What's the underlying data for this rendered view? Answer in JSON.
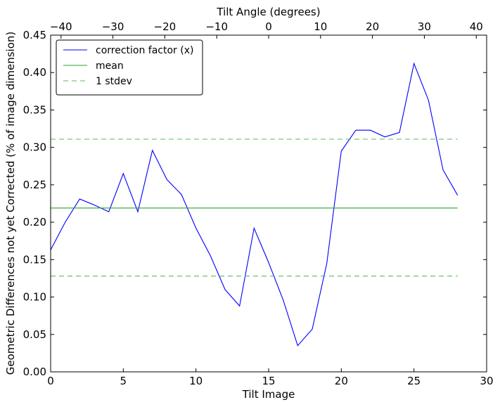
{
  "chart_data": {
    "type": "line",
    "xlabel": "Tilt Image",
    "ylabel": "Geometric Differences not yet Corrected (% of image dimension)",
    "x2label": "Tilt Angle (degrees)",
    "xlim": [
      0,
      30
    ],
    "ylim": [
      0,
      0.45
    ],
    "x2lim": [
      -42,
      42
    ],
    "xticks": [
      0,
      5,
      10,
      15,
      20,
      25,
      30
    ],
    "xtick_labels": [
      "0",
      "5",
      "10",
      "15",
      "20",
      "25",
      "30"
    ],
    "yticks": [
      0,
      0.05,
      0.1,
      0.15,
      0.2,
      0.25,
      0.3,
      0.35,
      0.4,
      0.45
    ],
    "ytick_labels": [
      "0.00",
      "0.05",
      "0.10",
      "0.15",
      "0.20",
      "0.25",
      "0.30",
      "0.35",
      "0.40",
      "0.45"
    ],
    "x2ticks": [
      -40,
      -30,
      -20,
      -10,
      0,
      10,
      20,
      30,
      40
    ],
    "x2tick_labels": [
      "−40",
      "−30",
      "−20",
      "−10",
      "0",
      "10",
      "20",
      "30",
      "40"
    ],
    "grid": false,
    "legend_position": "top-left",
    "series": [
      {
        "name": "correction factor (x)",
        "style": "solid",
        "color": "#0000ff",
        "x": [
          0,
          1,
          2,
          3,
          4,
          5,
          6,
          7,
          8,
          9,
          10,
          11,
          12,
          13,
          14,
          15,
          16,
          17,
          18,
          19,
          20,
          21,
          22,
          23,
          24,
          25,
          26,
          27,
          28
        ],
        "y": [
          0.163,
          0.2,
          0.231,
          0.223,
          0.214,
          0.265,
          0.214,
          0.296,
          0.257,
          0.237,
          0.192,
          0.155,
          0.11,
          0.088,
          0.192,
          0.146,
          0.096,
          0.035,
          0.057,
          0.145,
          0.295,
          0.323,
          0.323,
          0.314,
          0.32,
          0.412,
          0.363,
          0.27,
          0.236
        ]
      },
      {
        "name": "mean",
        "style": "solid",
        "color": "#2ca02c",
        "x": [
          0,
          28
        ],
        "y": [
          0.219,
          0.219
        ]
      },
      {
        "name": "1 stdev",
        "style": "dashed",
        "color": "#5cb85c",
        "x": [
          0,
          28
        ],
        "y": [
          0.311,
          0.311
        ]
      },
      {
        "name": "",
        "style": "dashed",
        "color": "#5cb85c",
        "x": [
          0,
          28
        ],
        "y": [
          0.128,
          0.128
        ]
      }
    ]
  }
}
